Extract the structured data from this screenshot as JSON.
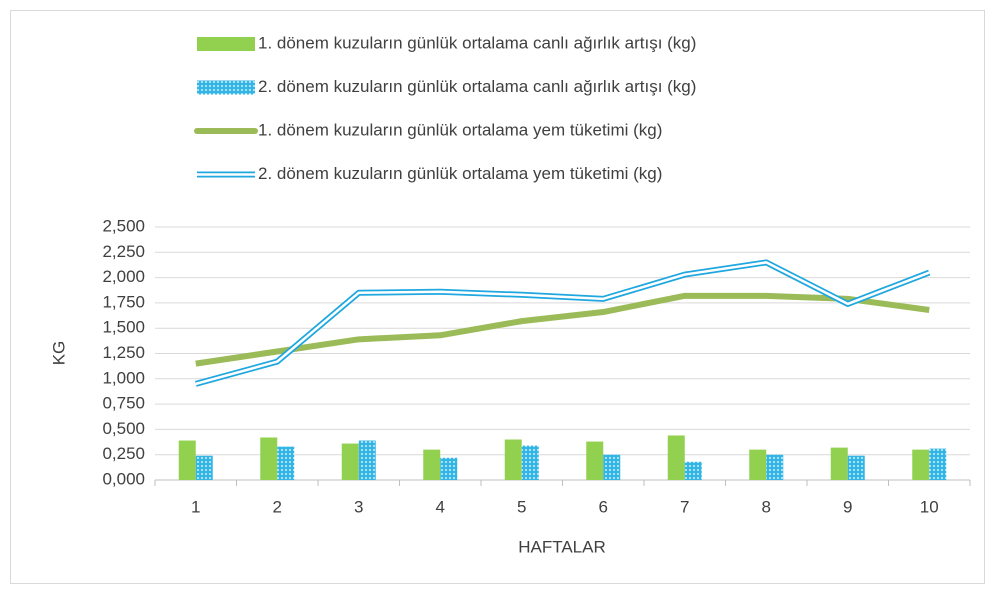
{
  "chart_data": {
    "type": "bar_line",
    "x_label": "HAFTALAR",
    "y_label": "KG",
    "categories": [
      "1",
      "2",
      "3",
      "4",
      "5",
      "6",
      "7",
      "8",
      "9",
      "10"
    ],
    "series": [
      {
        "name": "1. dönem kuzuların günlük ortalama canlı ağırlık artışı (kg)",
        "kind": "bar",
        "color": "#92d050",
        "values": [
          0.39,
          0.42,
          0.36,
          0.3,
          0.4,
          0.38,
          0.44,
          0.3,
          0.32,
          0.3
        ]
      },
      {
        "name": "2. dönem kuzuların günlük ortalama canlı ağırlık artışı (kg)",
        "kind": "bar",
        "color": "#33b5e5",
        "values": [
          0.24,
          0.33,
          0.39,
          0.22,
          0.34,
          0.25,
          0.18,
          0.25,
          0.24,
          0.31
        ]
      },
      {
        "name": "1. dönem kuzuların günlük ortalama yem tüketimi (kg)",
        "kind": "line",
        "color": "#9bbb59",
        "values": [
          1.15,
          1.27,
          1.39,
          1.43,
          1.57,
          1.66,
          1.82,
          1.82,
          1.79,
          1.68
        ]
      },
      {
        "name": "2. dönem kuzuların günlük ortalama yem tüketimi (kg)",
        "kind": "line",
        "color": "#1fa7df",
        "values": [
          0.95,
          1.17,
          1.85,
          1.86,
          1.83,
          1.79,
          2.03,
          2.15,
          1.74,
          2.05
        ]
      }
    ],
    "ylim": [
      0,
      2.5
    ],
    "yticks": [
      {
        "value": 0,
        "label": "0,000"
      },
      {
        "value": 0.25,
        "label": "0,250"
      },
      {
        "value": 0.5,
        "label": "0,500"
      },
      {
        "value": 0.75,
        "label": "0,750"
      },
      {
        "value": 1,
        "label": "1,000"
      },
      {
        "value": 1.25,
        "label": "1,250"
      },
      {
        "value": 1.5,
        "label": "1,500"
      },
      {
        "value": 1.75,
        "label": "1,750"
      },
      {
        "value": 2,
        "label": "2,000"
      },
      {
        "value": 2.25,
        "label": "2,250"
      },
      {
        "value": 2.5,
        "label": "2,500"
      }
    ],
    "grid": true
  }
}
